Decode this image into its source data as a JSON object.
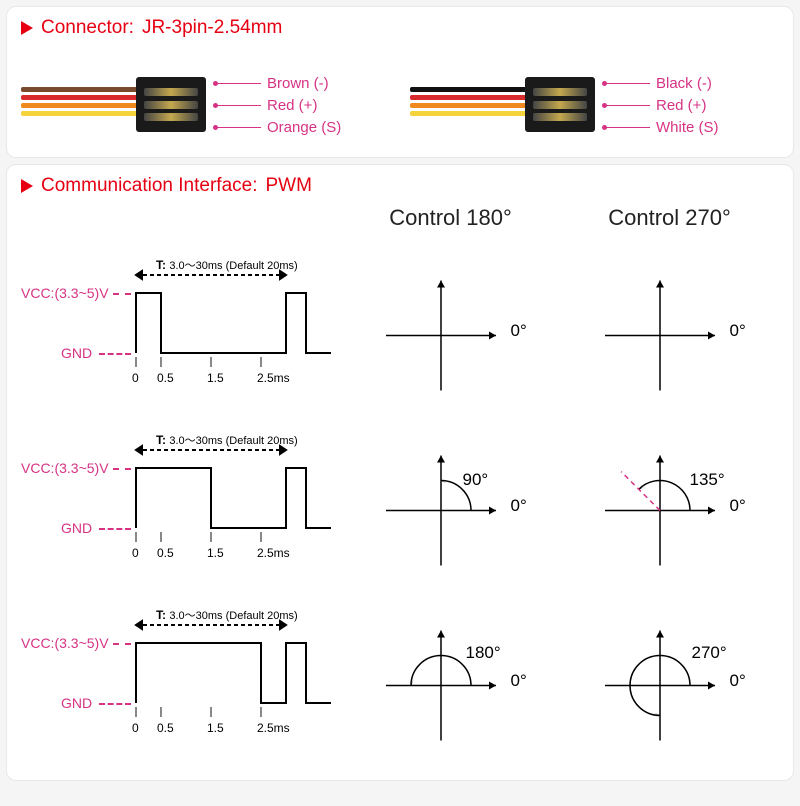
{
  "connector_panel": {
    "header_label": "Connector:",
    "header_value": "JR-3pin-2.54mm",
    "left": {
      "wire_colors": [
        "#7b4a2e",
        "#d82b2b",
        "#f08a1e",
        "#f5d33d"
      ],
      "plug_color": "#1a1a1a",
      "pins": [
        {
          "label": "Brown (-)",
          "color": "#d63384"
        },
        {
          "label": "Red (+)",
          "color": "#d63384"
        },
        {
          "label": "Orange (S)",
          "color": "#d63384"
        }
      ]
    },
    "right": {
      "wire_colors": [
        "#111111",
        "#d82b2b",
        "#f08a1e",
        "#f5d33d"
      ],
      "plug_color": "#1a1a1a",
      "pins": [
        {
          "label": "Black (-)",
          "color": "#d63384"
        },
        {
          "label": "Red (+)",
          "color": "#d63384"
        },
        {
          "label": "White (S)",
          "color": "#d63384"
        }
      ]
    }
  },
  "pwm_panel": {
    "header_label": "Communication Interface:",
    "header_value": "PWM",
    "col1_header": "",
    "col2_header": "Control 180°",
    "col3_header": "Control 270°",
    "vcc_label": "VCC:(3.3~5)V",
    "gnd_label": "GND",
    "period_label": "T:",
    "period_text": "3.0～30ms (Default 20ms)",
    "tick_labels": [
      "0",
      "0.5",
      "1.5",
      "2.5ms"
    ],
    "rows": [
      {
        "pulse_end_tick": 0.5,
        "angle180": {
          "deg": 0,
          "label": "0°"
        },
        "angle270": {
          "deg": 0,
          "label": "0°"
        }
      },
      {
        "pulse_end_tick": 1.5,
        "angle180": {
          "deg": 90,
          "label": "90°"
        },
        "angle270": {
          "deg": 135,
          "label": "135°"
        }
      },
      {
        "pulse_end_tick": 2.5,
        "angle180": {
          "deg": 180,
          "label": "180°"
        },
        "angle270": {
          "deg": 270,
          "label": "270°"
        }
      }
    ],
    "zero_label": "0°",
    "colors": {
      "accent": "#e60012",
      "pink": "#d63384",
      "axis": "#000000",
      "panel_bg": "#ffffff"
    }
  }
}
